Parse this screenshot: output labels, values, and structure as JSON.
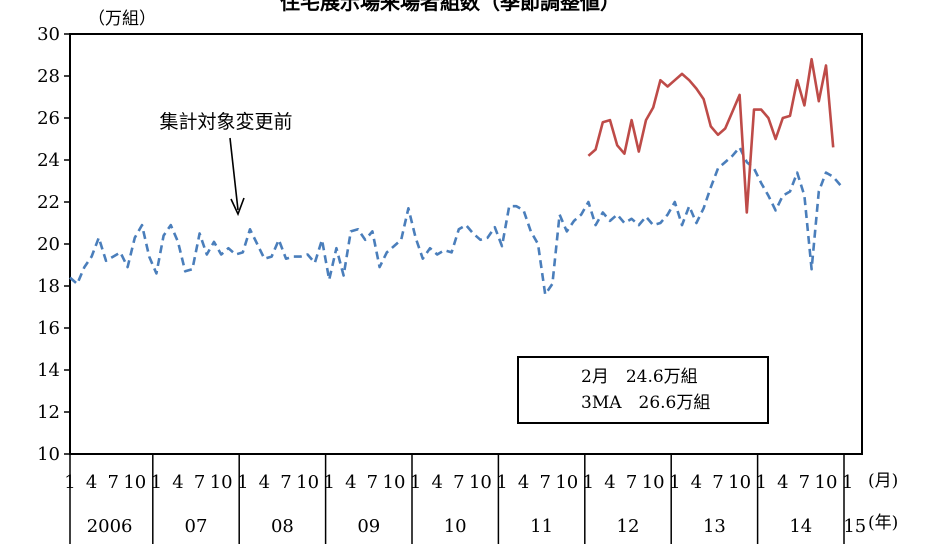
{
  "chart_data": {
    "type": "line",
    "title": "住宅展示場来場者組数（季節調整値）",
    "unit_label": "（万組）",
    "ylim": [
      10,
      30
    ],
    "y_ticks": [
      10,
      12,
      14,
      16,
      18,
      20,
      22,
      24,
      26,
      28,
      30
    ],
    "x_month_label": "(月)",
    "x_year_label": "(年)",
    "month_ticks": [
      "1",
      "4",
      "7",
      "10"
    ],
    "years": [
      "2006",
      "07",
      "08",
      "09",
      "10",
      "11",
      "12",
      "13",
      "14",
      "15"
    ],
    "annotation": "集計対象変更前",
    "legend_lines": [
      "2月　24.6万組",
      "3MA　26.6万組"
    ],
    "colors": {
      "old_series": "#4a7ebb",
      "new_series": "#be4b48"
    },
    "series": [
      {
        "style": "dashed",
        "start": "2006-01",
        "values": [
          18.4,
          18.1,
          18.9,
          19.4,
          20.3,
          19.2,
          19.4,
          19.6,
          18.9,
          20.3,
          20.9,
          19.4,
          18.6,
          20.4,
          20.9,
          20.1,
          18.7,
          18.8,
          20.5,
          19.5,
          20.1,
          19.5,
          19.8,
          19.5,
          19.6,
          20.7,
          20.0,
          19.3,
          19.4,
          20.2,
          19.3,
          19.4,
          19.4,
          19.5,
          19.1,
          20.2,
          18.3,
          19.8,
          18.5,
          20.6,
          20.7,
          20.2,
          20.6,
          18.9,
          19.6,
          19.9,
          20.2,
          21.7,
          20.3,
          19.3,
          19.8,
          19.5,
          19.7,
          19.6,
          20.7,
          20.9,
          20.5,
          20.2,
          20.3,
          20.8,
          19.9,
          21.8,
          21.8,
          21.6,
          20.6,
          20.0,
          17.6,
          18.1,
          21.4,
          20.6,
          21.1,
          21.4,
          22.0,
          20.9,
          21.5,
          21.1,
          21.4,
          21.0,
          21.2,
          20.9,
          21.3,
          20.9,
          21.0,
          21.4,
          22.0,
          20.9,
          21.8,
          21.0,
          21.7,
          22.7,
          23.6,
          23.9,
          24.2,
          24.6,
          23.9,
          23.6,
          22.9,
          22.3,
          21.6,
          22.3,
          22.5,
          23.4,
          22.3,
          18.8,
          22.5,
          23.4,
          23.2,
          22.8
        ]
      },
      {
        "style": "solid",
        "start": "2012-01",
        "values": [
          24.2,
          24.5,
          25.8,
          25.9,
          24.7,
          24.3,
          25.9,
          24.4,
          25.9,
          26.5,
          27.8,
          27.5,
          27.8,
          28.1,
          27.8,
          27.4,
          26.9,
          25.6,
          25.2,
          25.5,
          26.3,
          27.1,
          21.5,
          26.4,
          26.4,
          26.0,
          25.0,
          26.0,
          26.1,
          27.8,
          26.6,
          28.8,
          26.8,
          28.5,
          24.6
        ]
      }
    ]
  }
}
